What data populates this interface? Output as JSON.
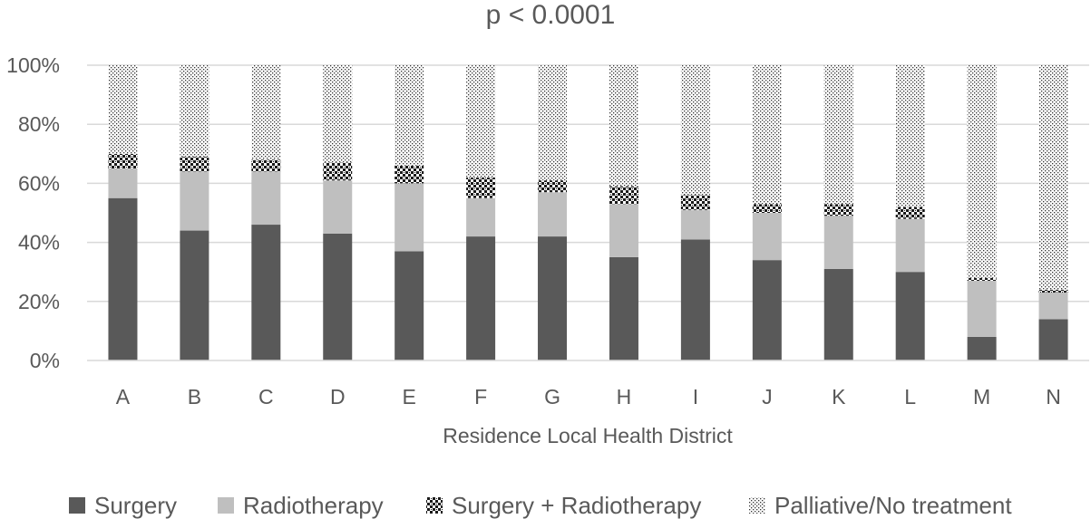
{
  "chart_data": {
    "type": "bar",
    "stacked": true,
    "title": "p < 0.0001",
    "xlabel": "Residence Local Health District",
    "ylabel": "",
    "ylim": [
      0,
      100
    ],
    "yticks": [
      "0%",
      "20%",
      "40%",
      "60%",
      "80%",
      "100%"
    ],
    "grid": true,
    "legend_position": "bottom",
    "categories": [
      "A",
      "B",
      "C",
      "D",
      "E",
      "F",
      "G",
      "H",
      "I",
      "J",
      "K",
      "L",
      "M",
      "N"
    ],
    "series": [
      {
        "name": "Surgery",
        "color": "#595959",
        "pattern": "solid",
        "values": [
          55,
          44,
          46,
          43,
          37,
          42,
          42,
          35,
          41,
          34,
          31,
          30,
          8,
          14
        ]
      },
      {
        "name": "Radiotherapy",
        "color": "#bfbfbf",
        "pattern": "solid",
        "values": [
          10,
          20,
          18,
          18,
          23,
          13,
          15,
          18,
          10,
          16,
          18,
          18,
          19,
          9
        ]
      },
      {
        "name": "Surgery + Radiotherapy",
        "color": "#000000",
        "pattern": "checker",
        "values": [
          5,
          5,
          4,
          6,
          6,
          7,
          4,
          6,
          5,
          3,
          4,
          4,
          1,
          1
        ]
      },
      {
        "name": "Palliative/No treatment",
        "color": "#000000",
        "pattern": "dots",
        "values": [
          30,
          31,
          32,
          33,
          34,
          38,
          39,
          41,
          44,
          47,
          47,
          48,
          72,
          76
        ]
      }
    ]
  }
}
